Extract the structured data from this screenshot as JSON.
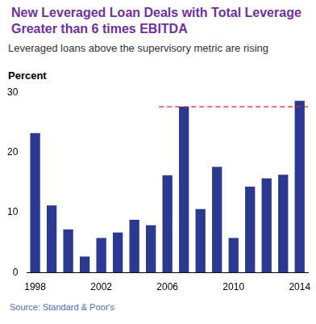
{
  "chart_data": {
    "type": "bar",
    "title": "New Leveraged Loan Deals with Total Leverage Greater than 6 times EBITDA",
    "subtitle": "Leveraged loans above the supervisory metric are rising",
    "y_label": "Percent",
    "source": "Source:  Standard & Poor's",
    "categories": [
      "1998",
      null,
      null,
      null,
      "2002",
      null,
      null,
      null,
      "2006",
      null,
      null,
      null,
      "2010",
      null,
      null,
      null,
      "2014"
    ],
    "values": [
      23.2,
      11.2,
      7.2,
      2.7,
      5.8,
      6.7,
      8.8,
      7.9,
      16.2,
      27.6,
      10.6,
      17.6,
      5.8,
      14.3,
      15.7,
      16.3,
      28.6
    ],
    "color": "#2b3990",
    "reference_line": {
      "value": 27.6,
      "color": "#e02020",
      "line_style": "dashed"
    },
    "ylim": [
      0,
      30
    ],
    "yticks": [
      0,
      10,
      20,
      30
    ],
    "grid": false
  }
}
